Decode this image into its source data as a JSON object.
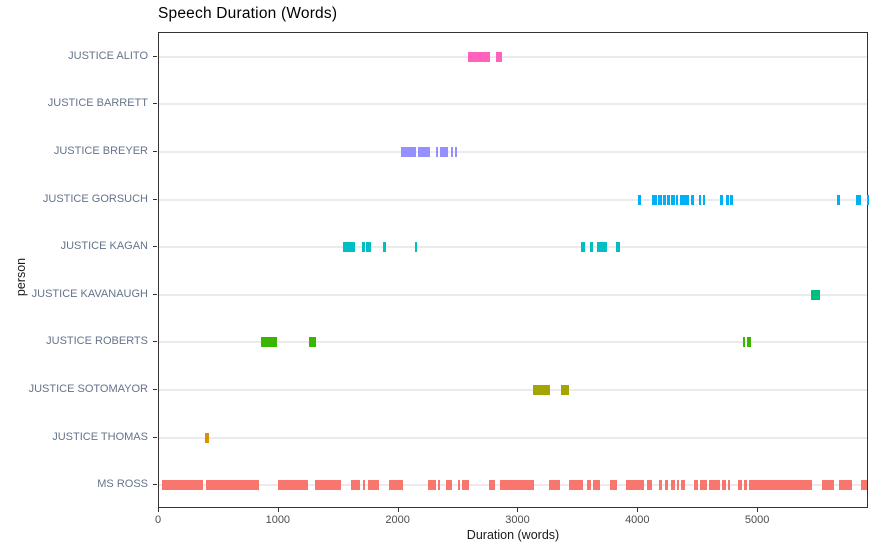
{
  "title": "Speech Duration (Words)",
  "axes": {
    "x_label": "Duration (words)",
    "y_label": "person",
    "x_ticks": [
      0,
      1000,
      2000,
      3000,
      4000,
      5000
    ],
    "x_min": 0,
    "x_max": 5925
  },
  "colors": {
    "grid": "#ebebeb",
    "panel_border": "#333333",
    "axis_text": "#64748b",
    "tick_text": "#4d4d4d"
  },
  "chart_data": {
    "type": "bar",
    "subtype": "interval-tick-strip",
    "title": "Speech Duration (Words)",
    "xlabel": "Duration (words)",
    "ylabel": "person",
    "xlim": [
      0,
      5925
    ],
    "grid": "horizontal-only",
    "legend": "none",
    "categories": [
      "JUSTICE ALITO",
      "JUSTICE BARRETT",
      "JUSTICE BREYER",
      "JUSTICE GORSUCH",
      "JUSTICE KAGAN",
      "JUSTICE KAVANAUGH",
      "JUSTICE ROBERTS",
      "JUSTICE SOTOMAYOR",
      "JUSTICE THOMAS",
      "MS ROSS"
    ],
    "series": [
      {
        "name": "JUSTICE ALITO",
        "color": "#FF62BC",
        "intervals": [
          [
            2575,
            2760
          ],
          [
            2815,
            2860
          ]
        ]
      },
      {
        "name": "JUSTICE BARRETT",
        "color": "#E76BF3",
        "intervals": []
      },
      {
        "name": "JUSTICE BREYER",
        "color": "#9590FF",
        "intervals": [
          [
            2020,
            2145
          ],
          [
            2160,
            2260
          ],
          [
            2310,
            2330
          ],
          [
            2345,
            2410
          ],
          [
            2435,
            2457
          ],
          [
            2473,
            2490
          ]
        ]
      },
      {
        "name": "JUSTICE GORSUCH",
        "color": "#00B0F6",
        "intervals": [
          [
            4000,
            4020
          ],
          [
            4115,
            4157
          ],
          [
            4165,
            4198
          ],
          [
            4207,
            4232
          ],
          [
            4240,
            4265
          ],
          [
            4274,
            4307
          ],
          [
            4315,
            4332
          ],
          [
            4349,
            4424
          ],
          [
            4440,
            4465
          ],
          [
            4507,
            4524
          ],
          [
            4541,
            4557
          ],
          [
            4683,
            4708
          ],
          [
            4733,
            4758
          ],
          [
            4766,
            4791
          ],
          [
            5660,
            5685
          ],
          [
            5818,
            5860
          ],
          [
            5905,
            5925
          ]
        ]
      },
      {
        "name": "JUSTICE KAGAN",
        "color": "#00BFC4",
        "intervals": [
          [
            1536,
            1636
          ],
          [
            1695,
            1720
          ],
          [
            1728,
            1770
          ],
          [
            1870,
            1895
          ],
          [
            2137,
            2154
          ],
          [
            3522,
            3556
          ],
          [
            3597,
            3622
          ],
          [
            3656,
            3740
          ],
          [
            3815,
            3848
          ]
        ]
      },
      {
        "name": "JUSTICE KAVANAUGH",
        "color": "#00BF7D",
        "intervals": [
          [
            5440,
            5520
          ]
        ]
      },
      {
        "name": "JUSTICE ROBERTS",
        "color": "#39B600",
        "intervals": [
          [
            850,
            985
          ],
          [
            1252,
            1310
          ],
          [
            4875,
            4885
          ],
          [
            4908,
            4941
          ]
        ]
      },
      {
        "name": "JUSTICE SOTOMAYOR",
        "color": "#A3A500",
        "intervals": [
          [
            3120,
            3265
          ],
          [
            3355,
            3422
          ]
        ]
      },
      {
        "name": "JUSTICE THOMAS",
        "color": "#D89000",
        "intervals": [
          [
            385,
            420
          ]
        ]
      },
      {
        "name": "MS ROSS",
        "color": "#F8766D",
        "intervals": [
          [
            25,
            365
          ],
          [
            392,
            835
          ],
          [
            993,
            1244
          ],
          [
            1302,
            1519
          ],
          [
            1603,
            1678
          ],
          [
            1703,
            1711
          ],
          [
            1745,
            1837
          ],
          [
            1920,
            2037
          ],
          [
            2245,
            2312
          ],
          [
            2329,
            2346
          ],
          [
            2396,
            2446
          ],
          [
            2496,
            2512
          ],
          [
            2529,
            2588
          ],
          [
            2754,
            2804
          ],
          [
            2846,
            3130
          ],
          [
            3255,
            3347
          ],
          [
            3422,
            3539
          ],
          [
            3572,
            3606
          ],
          [
            3622,
            3681
          ],
          [
            3764,
            3823
          ],
          [
            3898,
            4048
          ],
          [
            4073,
            4115
          ],
          [
            4173,
            4198
          ],
          [
            4223,
            4248
          ],
          [
            4274,
            4307
          ],
          [
            4324,
            4340
          ],
          [
            4357,
            4391
          ],
          [
            4466,
            4499
          ],
          [
            4516,
            4574
          ],
          [
            4591,
            4683
          ],
          [
            4699,
            4733
          ],
          [
            4749,
            4766
          ],
          [
            4833,
            4866
          ],
          [
            4883,
            4908
          ],
          [
            4925,
            5451
          ],
          [
            5535,
            5635
          ],
          [
            5677,
            5786
          ],
          [
            5860,
            5910
          ]
        ]
      }
    ]
  }
}
